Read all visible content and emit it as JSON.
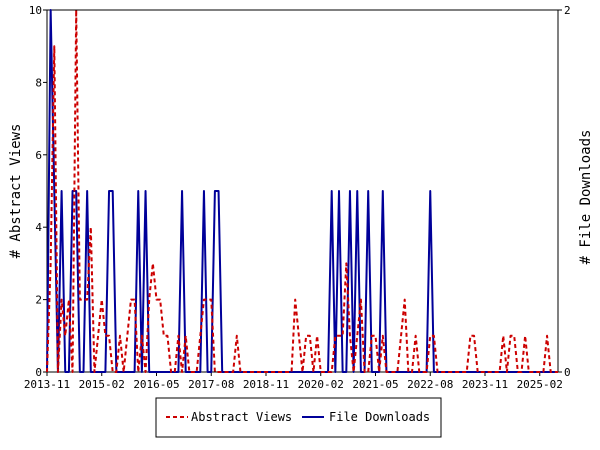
{
  "chart_data": {
    "type": "line",
    "x_tick_labels": [
      "2013-11",
      "2015-02",
      "2016-05",
      "2017-08",
      "2018-11",
      "2020-02",
      "2021-05",
      "2022-08",
      "2023-11",
      "2025-02"
    ],
    "x_range": [
      "2013-11",
      "2025-07"
    ],
    "y_left": {
      "label": "# Abstract Views",
      "range": [
        0,
        10
      ],
      "ticks": [
        "0",
        "2",
        "4",
        "6",
        "8",
        "10"
      ]
    },
    "y_right": {
      "label": "# File Downloads",
      "range": [
        0,
        2
      ],
      "ticks": [
        "0",
        "2"
      ]
    },
    "legend_position": "bottom",
    "grid": false,
    "series": [
      {
        "name": "Abstract Views",
        "axis": "left",
        "color": "#cc0000",
        "dash": "dashed",
        "points": [
          [
            "2013-11",
            0
          ],
          [
            "2013-12",
            3
          ],
          [
            "2014-01",
            9
          ],
          [
            "2014-02",
            0
          ],
          [
            "2014-03",
            2
          ],
          [
            "2014-04",
            1
          ],
          [
            "2014-05",
            2
          ],
          [
            "2014-06",
            0
          ],
          [
            "2014-07",
            10
          ],
          [
            "2014-08",
            2
          ],
          [
            "2014-09",
            2
          ],
          [
            "2014-10",
            2
          ],
          [
            "2014-11",
            4
          ],
          [
            "2014-12",
            0
          ],
          [
            "2015-01",
            1
          ],
          [
            "2015-02",
            2
          ],
          [
            "2015-03",
            1
          ],
          [
            "2015-04",
            1
          ],
          [
            "2015-05",
            0
          ],
          [
            "2015-06",
            0
          ],
          [
            "2015-07",
            1
          ],
          [
            "2015-08",
            0
          ],
          [
            "2015-09",
            1
          ],
          [
            "2015-10",
            2
          ],
          [
            "2015-11",
            2
          ],
          [
            "2015-12",
            0
          ],
          [
            "2016-01",
            1
          ],
          [
            "2016-02",
            0
          ],
          [
            "2016-03",
            2
          ],
          [
            "2016-04",
            3
          ],
          [
            "2016-05",
            2
          ],
          [
            "2016-06",
            2
          ],
          [
            "2016-07",
            1
          ],
          [
            "2016-08",
            1
          ],
          [
            "2016-09",
            0
          ],
          [
            "2016-10",
            0
          ],
          [
            "2016-11",
            1
          ],
          [
            "2016-12",
            0
          ],
          [
            "2017-01",
            1
          ],
          [
            "2017-02",
            0
          ],
          [
            "2017-03",
            0
          ],
          [
            "2017-04",
            0
          ],
          [
            "2017-05",
            1
          ],
          [
            "2017-06",
            2
          ],
          [
            "2017-07",
            2
          ],
          [
            "2017-08",
            2
          ],
          [
            "2017-09",
            0
          ],
          [
            "2017-10",
            0
          ],
          [
            "2017-11",
            0
          ],
          [
            "2017-12",
            0
          ],
          [
            "2018-01",
            0
          ],
          [
            "2018-02",
            0
          ],
          [
            "2018-03",
            1
          ],
          [
            "2018-04",
            0
          ],
          [
            "2018-05",
            0
          ],
          [
            "2018-06",
            0
          ],
          [
            "2018-07",
            0
          ],
          [
            "2018-08",
            0
          ],
          [
            "2018-09",
            0
          ],
          [
            "2018-10",
            0
          ],
          [
            "2018-11",
            0
          ],
          [
            "2018-12",
            0
          ],
          [
            "2019-01",
            0
          ],
          [
            "2019-02",
            0
          ],
          [
            "2019-03",
            0
          ],
          [
            "2019-04",
            0
          ],
          [
            "2019-05",
            0
          ],
          [
            "2019-06",
            0
          ],
          [
            "2019-07",
            2
          ],
          [
            "2019-08",
            1
          ],
          [
            "2019-09",
            0
          ],
          [
            "2019-10",
            1
          ],
          [
            "2019-11",
            1
          ],
          [
            "2019-12",
            0
          ],
          [
            "2020-01",
            1
          ],
          [
            "2020-02",
            0
          ],
          [
            "2020-03",
            0
          ],
          [
            "2020-04",
            0
          ],
          [
            "2020-05",
            0
          ],
          [
            "2020-06",
            1
          ],
          [
            "2020-07",
            1
          ],
          [
            "2020-08",
            1
          ],
          [
            "2020-09",
            3
          ],
          [
            "2020-10",
            1
          ],
          [
            "2020-11",
            0
          ],
          [
            "2020-12",
            1
          ],
          [
            "2021-01",
            2
          ],
          [
            "2021-02",
            0
          ],
          [
            "2021-03",
            0
          ],
          [
            "2021-04",
            1
          ],
          [
            "2021-05",
            1
          ],
          [
            "2021-06",
            0
          ],
          [
            "2021-07",
            1
          ],
          [
            "2021-08",
            0
          ],
          [
            "2021-09",
            0
          ],
          [
            "2021-10",
            0
          ],
          [
            "2021-11",
            0
          ],
          [
            "2021-12",
            1
          ],
          [
            "2022-01",
            2
          ],
          [
            "2022-02",
            0
          ],
          [
            "2022-03",
            0
          ],
          [
            "2022-04",
            1
          ],
          [
            "2022-05",
            0
          ],
          [
            "2022-06",
            0
          ],
          [
            "2022-07",
            0
          ],
          [
            "2022-08",
            1
          ],
          [
            "2022-09",
            1
          ],
          [
            "2022-10",
            0
          ],
          [
            "2022-11",
            0
          ],
          [
            "2022-12",
            0
          ],
          [
            "2023-01",
            0
          ],
          [
            "2023-02",
            0
          ],
          [
            "2023-03",
            0
          ],
          [
            "2023-04",
            0
          ],
          [
            "2023-05",
            0
          ],
          [
            "2023-06",
            0
          ],
          [
            "2023-07",
            1
          ],
          [
            "2023-08",
            1
          ],
          [
            "2023-09",
            0
          ],
          [
            "2023-10",
            0
          ],
          [
            "2023-11",
            0
          ],
          [
            "2023-12",
            0
          ],
          [
            "2024-01",
            0
          ],
          [
            "2024-02",
            0
          ],
          [
            "2024-03",
            0
          ],
          [
            "2024-04",
            1
          ],
          [
            "2024-05",
            0
          ],
          [
            "2024-06",
            1
          ],
          [
            "2024-07",
            1
          ],
          [
            "2024-08",
            0
          ],
          [
            "2024-09",
            0
          ],
          [
            "2024-10",
            1
          ],
          [
            "2024-11",
            0
          ],
          [
            "2024-12",
            0
          ],
          [
            "2025-01",
            0
          ],
          [
            "2025-02",
            0
          ],
          [
            "2025-03",
            0
          ],
          [
            "2025-04",
            1
          ],
          [
            "2025-05",
            0
          ],
          [
            "2025-06",
            0
          ],
          [
            "2025-07",
            0
          ]
        ]
      },
      {
        "name": "File Downloads",
        "axis": "right",
        "color": "#000099",
        "dash": "solid",
        "points": [
          [
            "2013-11",
            0
          ],
          [
            "2013-12",
            2
          ],
          [
            "2014-01",
            1
          ],
          [
            "2014-02",
            0
          ],
          [
            "2014-03",
            1
          ],
          [
            "2014-04",
            0
          ],
          [
            "2014-05",
            0
          ],
          [
            "2014-06",
            1
          ],
          [
            "2014-07",
            1
          ],
          [
            "2014-08",
            0
          ],
          [
            "2014-09",
            0
          ],
          [
            "2014-10",
            1
          ],
          [
            "2014-11",
            0
          ],
          [
            "2014-12",
            0
          ],
          [
            "2015-01",
            0
          ],
          [
            "2015-02",
            0
          ],
          [
            "2015-03",
            0
          ],
          [
            "2015-04",
            1
          ],
          [
            "2015-05",
            1
          ],
          [
            "2015-06",
            0
          ],
          [
            "2015-07",
            0
          ],
          [
            "2015-08",
            0
          ],
          [
            "2015-09",
            0
          ],
          [
            "2015-10",
            0
          ],
          [
            "2015-11",
            0
          ],
          [
            "2015-12",
            1
          ],
          [
            "2016-01",
            0
          ],
          [
            "2016-02",
            1
          ],
          [
            "2016-03",
            0
          ],
          [
            "2016-04",
            0
          ],
          [
            "2016-05",
            0
          ],
          [
            "2016-06",
            0
          ],
          [
            "2016-07",
            0
          ],
          [
            "2016-08",
            0
          ],
          [
            "2016-09",
            0
          ],
          [
            "2016-10",
            0
          ],
          [
            "2016-11",
            0
          ],
          [
            "2016-12",
            1
          ],
          [
            "2017-01",
            0
          ],
          [
            "2017-02",
            0
          ],
          [
            "2017-03",
            0
          ],
          [
            "2017-04",
            0
          ],
          [
            "2017-05",
            0
          ],
          [
            "2017-06",
            1
          ],
          [
            "2017-07",
            0
          ],
          [
            "2017-08",
            0
          ],
          [
            "2017-09",
            1
          ],
          [
            "2017-10",
            1
          ],
          [
            "2017-11",
            0
          ],
          [
            "2017-12",
            0
          ],
          [
            "2018-01",
            0
          ],
          [
            "2018-02",
            0
          ],
          [
            "2018-03",
            0
          ],
          [
            "2018-04",
            0
          ],
          [
            "2018-05",
            0
          ],
          [
            "2018-06",
            0
          ],
          [
            "2018-07",
            0
          ],
          [
            "2018-08",
            0
          ],
          [
            "2018-09",
            0
          ],
          [
            "2018-10",
            0
          ],
          [
            "2018-11",
            0
          ],
          [
            "2018-12",
            0
          ],
          [
            "2019-01",
            0
          ],
          [
            "2019-02",
            0
          ],
          [
            "2019-03",
            0
          ],
          [
            "2019-04",
            0
          ],
          [
            "2019-05",
            0
          ],
          [
            "2019-06",
            0
          ],
          [
            "2019-07",
            0
          ],
          [
            "2019-08",
            0
          ],
          [
            "2019-09",
            0
          ],
          [
            "2019-10",
            0
          ],
          [
            "2019-11",
            0
          ],
          [
            "2019-12",
            0
          ],
          [
            "2020-01",
            0
          ],
          [
            "2020-02",
            0
          ],
          [
            "2020-03",
            0
          ],
          [
            "2020-04",
            0
          ],
          [
            "2020-05",
            1
          ],
          [
            "2020-06",
            0
          ],
          [
            "2020-07",
            1
          ],
          [
            "2020-08",
            0
          ],
          [
            "2020-09",
            0
          ],
          [
            "2020-10",
            1
          ],
          [
            "2020-11",
            0
          ],
          [
            "2020-12",
            1
          ],
          [
            "2021-01",
            0
          ],
          [
            "2021-02",
            0
          ],
          [
            "2021-03",
            1
          ],
          [
            "2021-04",
            0
          ],
          [
            "2021-05",
            0
          ],
          [
            "2021-06",
            0
          ],
          [
            "2021-07",
            1
          ],
          [
            "2021-08",
            0
          ],
          [
            "2021-09",
            0
          ],
          [
            "2021-10",
            0
          ],
          [
            "2021-11",
            0
          ],
          [
            "2021-12",
            0
          ],
          [
            "2022-01",
            0
          ],
          [
            "2022-02",
            0
          ],
          [
            "2022-03",
            0
          ],
          [
            "2022-04",
            0
          ],
          [
            "2022-05",
            0
          ],
          [
            "2022-06",
            0
          ],
          [
            "2022-07",
            0
          ],
          [
            "2022-08",
            1
          ],
          [
            "2022-09",
            0
          ],
          [
            "2022-10",
            0
          ],
          [
            "2022-11",
            0
          ],
          [
            "2022-12",
            0
          ],
          [
            "2023-01",
            0
          ],
          [
            "2023-02",
            0
          ],
          [
            "2023-03",
            0
          ],
          [
            "2023-04",
            0
          ],
          [
            "2023-05",
            0
          ],
          [
            "2023-06",
            0
          ],
          [
            "2023-07",
            0
          ],
          [
            "2023-08",
            0
          ],
          [
            "2023-09",
            0
          ],
          [
            "2023-10",
            0
          ],
          [
            "2023-11",
            0
          ],
          [
            "2023-12",
            0
          ],
          [
            "2024-01",
            0
          ],
          [
            "2024-02",
            0
          ],
          [
            "2024-03",
            0
          ],
          [
            "2024-04",
            0
          ],
          [
            "2024-05",
            0
          ],
          [
            "2024-06",
            0
          ],
          [
            "2024-07",
            0
          ],
          [
            "2024-08",
            0
          ],
          [
            "2024-09",
            0
          ],
          [
            "2024-10",
            0
          ],
          [
            "2024-11",
            0
          ],
          [
            "2024-12",
            0
          ],
          [
            "2025-01",
            0
          ],
          [
            "2025-02",
            0
          ],
          [
            "2025-03",
            0
          ],
          [
            "2025-04",
            0
          ],
          [
            "2025-05",
            0
          ],
          [
            "2025-06",
            0
          ],
          [
            "2025-07",
            0
          ]
        ]
      }
    ]
  }
}
